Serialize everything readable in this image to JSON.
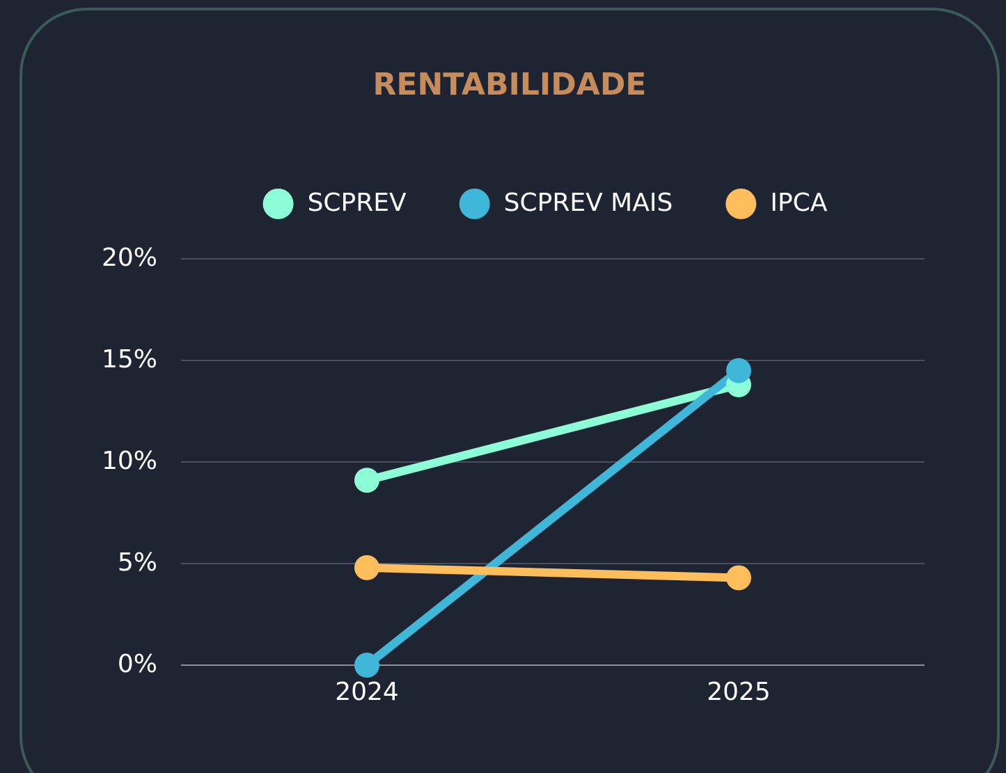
{
  "chart_data": {
    "type": "line",
    "title": "RENTABILIDADE",
    "categories": [
      "2024",
      "2025"
    ],
    "series": [
      {
        "name": "SCPREV",
        "color": "#8cfdd6",
        "values": [
          9.1,
          13.8
        ]
      },
      {
        "name": "SCPREV MAIS",
        "color": "#3fb7d8",
        "values": [
          0,
          14.5
        ]
      },
      {
        "name": "IPCA",
        "color": "#ffbe5c",
        "values": [
          4.8,
          4.3
        ]
      }
    ],
    "ylim": [
      0,
      20
    ],
    "yticks": [
      {
        "value": 0,
        "label": "0%"
      },
      {
        "value": 5,
        "label": "5%"
      },
      {
        "value": 10,
        "label": "10%"
      },
      {
        "value": 15,
        "label": "15%"
      },
      {
        "value": 20,
        "label": "20%"
      }
    ],
    "grid": true,
    "legend": "top"
  }
}
